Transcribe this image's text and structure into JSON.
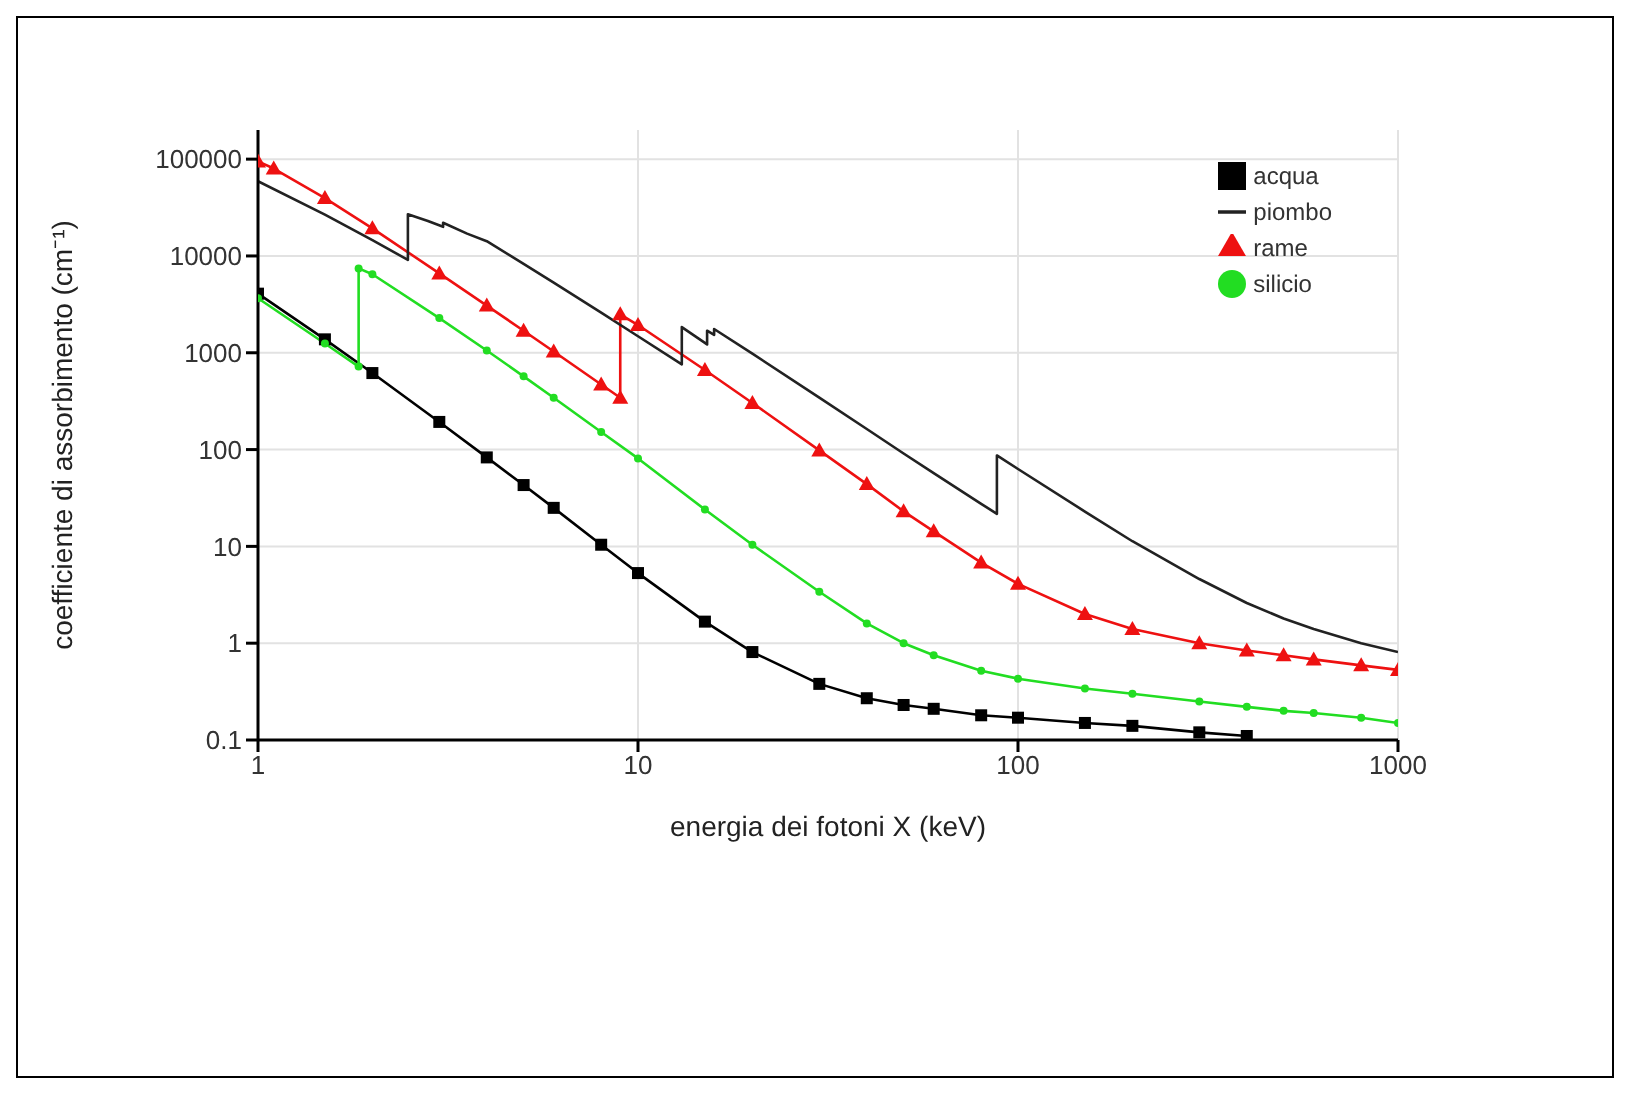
{
  "chart_data": {
    "type": "line",
    "xlabel": "energia dei fotoni X (keV)",
    "ylabel": "coefficiente di assorbimento (cm⁻¹)",
    "log": "xy",
    "grid": true,
    "legend": "top right",
    "xlim": [
      1,
      1000
    ],
    "xticks": [
      1,
      10,
      100,
      1000
    ],
    "ylim": [
      0.1,
      200000
    ],
    "yticks": [
      0.1,
      1,
      10,
      100,
      1000,
      10000,
      100000
    ],
    "series": [
      {
        "name": "acqua",
        "color": "#000000",
        "marker": "square",
        "x": [
          1,
          1.5,
          2,
          3,
          4,
          5,
          6,
          8,
          10,
          15,
          20,
          30,
          40,
          50,
          60,
          80,
          100,
          150,
          200,
          300,
          400
        ],
        "values": [
          4078,
          1376,
          617,
          193,
          83,
          43,
          25,
          10.4,
          5.3,
          1.67,
          0.81,
          0.38,
          0.27,
          0.23,
          0.21,
          0.18,
          0.17,
          0.15,
          0.14,
          0.12,
          0.11
        ]
      },
      {
        "name": "silicio",
        "color": "#22dd22",
        "marker": "circle",
        "x": [
          1,
          1.5,
          1.84,
          1.84,
          2,
          3,
          4,
          5,
          6,
          8,
          10,
          15,
          20,
          30,
          40,
          50,
          60,
          80,
          100,
          150,
          200,
          300,
          400,
          500,
          600,
          800,
          1000
        ],
        "values": [
          3658,
          1247,
          720,
          7440,
          6470,
          2280,
          1055,
          571,
          343,
          152,
          81,
          24,
          10.4,
          3.4,
          1.6,
          1.0,
          0.75,
          0.52,
          0.43,
          0.34,
          0.3,
          0.25,
          0.22,
          0.2,
          0.19,
          0.17,
          0.15
        ]
      },
      {
        "name": "rame",
        "color": "#ee1111",
        "marker": "triangle",
        "x": [
          1,
          1.1,
          1.5,
          2,
          3,
          4,
          5,
          6,
          8,
          8.98,
          8.98,
          10,
          15,
          20,
          30,
          40,
          50,
          60,
          80,
          100,
          150,
          200,
          300,
          400,
          500,
          600,
          800,
          1000
        ],
        "values": [
          94700,
          80000,
          39600,
          19300,
          6600,
          3070,
          1690,
          1030,
          470,
          343,
          2494,
          1934,
          663,
          303,
          98,
          44,
          23,
          14.3,
          6.8,
          4.1,
          2.0,
          1.4,
          1.0,
          0.84,
          0.75,
          0.68,
          0.59,
          0.53
        ]
      },
      {
        "name": "piombo",
        "color": "#222222",
        "marker": "none",
        "x": [
          1,
          1.5,
          2,
          2.48,
          2.48,
          2.8,
          3.07,
          3.07,
          3.55,
          4,
          5,
          6,
          8,
          10,
          13.04,
          13.04,
          15.2,
          15.2,
          15.86,
          15.86,
          20,
          30,
          40,
          50,
          60,
          80,
          88,
          88,
          100,
          150,
          200,
          300,
          400,
          500,
          600,
          800,
          1000
        ],
        "values": [
          59100,
          26700,
          14600,
          9100,
          27000,
          23000,
          20000,
          22000,
          17000,
          14200,
          8300,
          5300,
          2600,
          1480,
          760,
          1840,
          1220,
          1690,
          1530,
          1760,
          980,
          344,
          163,
          91,
          57,
          27.5,
          21.7,
          87,
          63,
          22.9,
          11.3,
          4.6,
          2.6,
          1.8,
          1.4,
          1.0,
          0.81
        ]
      }
    ]
  }
}
